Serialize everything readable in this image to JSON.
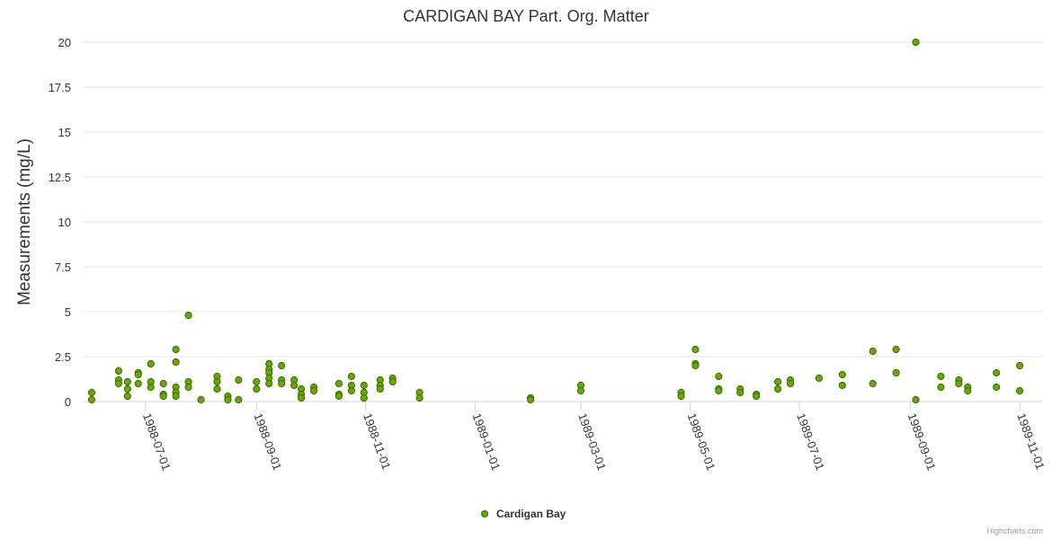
{
  "chart_data": {
    "type": "scatter",
    "title": "CARDIGAN BAY Part. Org. Matter",
    "xlabel": "",
    "ylabel": "Measurements (mg/L)",
    "x_type": "date",
    "xlim": [
      "1988-05-27",
      "1989-11-14"
    ],
    "ylim": [
      0,
      20
    ],
    "y_ticks": [
      "0",
      "2.5",
      "5",
      "7.5",
      "10",
      "12.5",
      "15",
      "17.5",
      "20"
    ],
    "x_ticks": [
      "1988-07-01",
      "1988-09-01",
      "1988-11-01",
      "1989-01-01",
      "1989-03-01",
      "1989-05-01",
      "1989-07-01",
      "1989-09-01",
      "1989-11-01"
    ],
    "grid": "horizontal",
    "legend_position": "bottom-center",
    "color": "#66aa00",
    "series": [
      {
        "name": "Cardigan Bay",
        "points": [
          [
            "1988-06-01",
            0.5
          ],
          [
            "1988-06-01",
            0.1
          ],
          [
            "1988-06-16",
            1.7
          ],
          [
            "1988-06-16",
            1.2
          ],
          [
            "1988-06-16",
            1.0
          ],
          [
            "1988-06-21",
            1.1
          ],
          [
            "1988-06-21",
            0.7
          ],
          [
            "1988-06-21",
            0.3
          ],
          [
            "1988-06-27",
            1.6
          ],
          [
            "1988-06-27",
            1.5
          ],
          [
            "1988-06-27",
            1.0
          ],
          [
            "1988-07-04",
            2.1
          ],
          [
            "1988-07-04",
            1.1
          ],
          [
            "1988-07-04",
            0.8
          ],
          [
            "1988-07-11",
            1.0
          ],
          [
            "1988-07-11",
            0.4
          ],
          [
            "1988-07-11",
            0.3
          ],
          [
            "1988-07-18",
            2.9
          ],
          [
            "1988-07-18",
            2.2
          ],
          [
            "1988-07-18",
            0.8
          ],
          [
            "1988-07-18",
            0.5
          ],
          [
            "1988-07-18",
            0.3
          ],
          [
            "1988-07-25",
            4.8
          ],
          [
            "1988-07-25",
            1.1
          ],
          [
            "1988-07-25",
            0.8
          ],
          [
            "1988-08-01",
            0.1
          ],
          [
            "1988-08-10",
            1.4
          ],
          [
            "1988-08-10",
            1.1
          ],
          [
            "1988-08-10",
            0.7
          ],
          [
            "1988-08-16",
            0.3
          ],
          [
            "1988-08-16",
            0.1
          ],
          [
            "1988-08-22",
            1.2
          ],
          [
            "1988-08-22",
            0.1
          ],
          [
            "1988-09-01",
            1.1
          ],
          [
            "1988-09-01",
            0.7
          ],
          [
            "1988-09-08",
            2.1
          ],
          [
            "1988-09-08",
            1.8
          ],
          [
            "1988-09-08",
            1.6
          ],
          [
            "1988-09-08",
            1.3
          ],
          [
            "1988-09-08",
            1.0
          ],
          [
            "1988-09-15",
            2.0
          ],
          [
            "1988-09-15",
            1.2
          ],
          [
            "1988-09-15",
            1.0
          ],
          [
            "1988-09-22",
            1.2
          ],
          [
            "1988-09-22",
            0.9
          ],
          [
            "1988-09-26",
            0.7
          ],
          [
            "1988-09-26",
            0.4
          ],
          [
            "1988-09-26",
            0.2
          ],
          [
            "1988-10-03",
            0.8
          ],
          [
            "1988-10-03",
            0.6
          ],
          [
            "1988-10-17",
            1.0
          ],
          [
            "1988-10-17",
            0.4
          ],
          [
            "1988-10-17",
            0.3
          ],
          [
            "1988-10-24",
            1.4
          ],
          [
            "1988-10-24",
            0.9
          ],
          [
            "1988-10-24",
            0.6
          ],
          [
            "1988-10-31",
            0.9
          ],
          [
            "1988-10-31",
            0.5
          ],
          [
            "1988-10-31",
            0.2
          ],
          [
            "1988-11-09",
            1.2
          ],
          [
            "1988-11-09",
            0.9
          ],
          [
            "1988-11-09",
            0.7
          ],
          [
            "1988-11-16",
            1.3
          ],
          [
            "1988-11-16",
            1.1
          ],
          [
            "1988-12-01",
            0.5
          ],
          [
            "1988-12-01",
            0.2
          ],
          [
            "1989-02-01",
            0.2
          ],
          [
            "1989-02-01",
            0.1
          ],
          [
            "1989-03-01",
            0.9
          ],
          [
            "1989-03-01",
            0.6
          ],
          [
            "1989-04-26",
            0.5
          ],
          [
            "1989-04-26",
            0.3
          ],
          [
            "1989-05-04",
            2.9
          ],
          [
            "1989-05-04",
            2.1
          ],
          [
            "1989-05-04",
            2.0
          ],
          [
            "1989-05-17",
            1.4
          ],
          [
            "1989-05-17",
            0.7
          ],
          [
            "1989-05-17",
            0.6
          ],
          [
            "1989-05-29",
            0.7
          ],
          [
            "1989-05-29",
            0.5
          ],
          [
            "1989-06-07",
            0.4
          ],
          [
            "1989-06-07",
            0.3
          ],
          [
            "1989-06-19",
            1.1
          ],
          [
            "1989-06-19",
            0.7
          ],
          [
            "1989-06-26",
            1.2
          ],
          [
            "1989-06-26",
            1.0
          ],
          [
            "1989-07-12",
            1.3
          ],
          [
            "1989-07-25",
            1.5
          ],
          [
            "1989-07-25",
            0.9
          ],
          [
            "1989-08-11",
            2.8
          ],
          [
            "1989-08-11",
            1.0
          ],
          [
            "1989-08-24",
            2.9
          ],
          [
            "1989-08-24",
            1.6
          ],
          [
            "1989-09-04",
            20.0
          ],
          [
            "1989-09-04",
            0.1
          ],
          [
            "1989-09-18",
            1.4
          ],
          [
            "1989-09-18",
            0.8
          ],
          [
            "1989-09-28",
            1.2
          ],
          [
            "1989-09-28",
            1.0
          ],
          [
            "1989-10-03",
            0.8
          ],
          [
            "1989-10-03",
            0.6
          ],
          [
            "1989-10-19",
            1.6
          ],
          [
            "1989-10-19",
            0.8
          ],
          [
            "1989-11-01",
            2.0
          ],
          [
            "1989-11-01",
            0.6
          ]
        ]
      }
    ]
  },
  "credits": "Highcharts.com"
}
